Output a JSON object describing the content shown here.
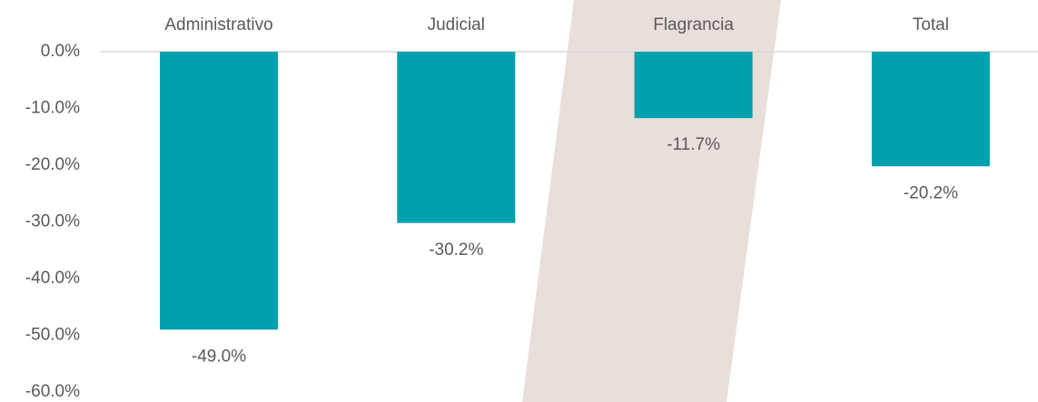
{
  "chart_data": {
    "type": "bar",
    "categories": [
      "Administrativo",
      "Judicial",
      "Flagrancia",
      "Total"
    ],
    "values": [
      -49.0,
      -30.2,
      -11.7,
      -20.2
    ],
    "value_labels": [
      "-49.0%",
      "-30.2%",
      "-11.7%",
      "-20.2%"
    ],
    "color": "#00a0af",
    "ylim": [
      -60,
      0
    ],
    "yticks": [
      {
        "value": 0,
        "label": "0.0%"
      },
      {
        "value": -10,
        "label": "-10.0%"
      },
      {
        "value": -20,
        "label": "-20.0%"
      },
      {
        "value": -30,
        "label": "-30.0%"
      },
      {
        "value": -40,
        "label": "-40.0%"
      },
      {
        "value": -50,
        "label": "-50.0%"
      },
      {
        "value": -60,
        "label": "-60.0%"
      }
    ],
    "grid": false
  }
}
